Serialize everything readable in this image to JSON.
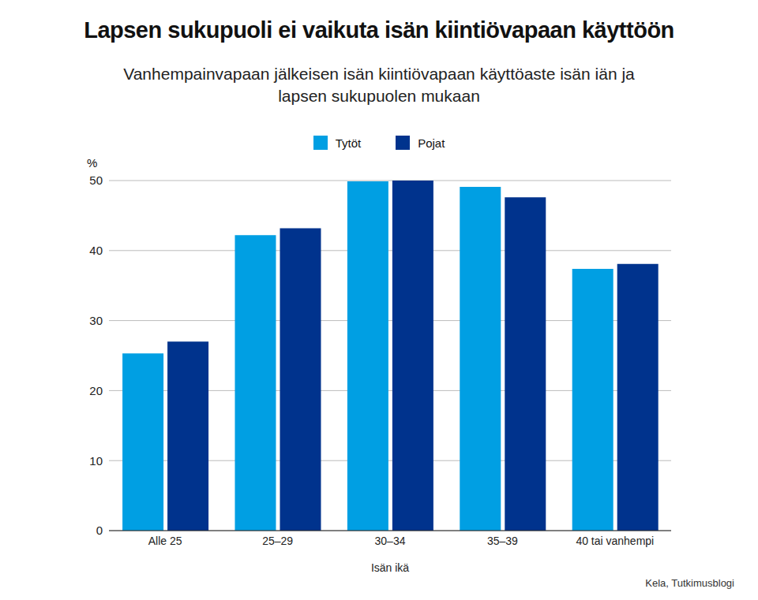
{
  "chart_data": {
    "type": "bar",
    "title": "Lapsen sukupuoli ei vaikuta isän kiintiövapaan käyttöön",
    "subtitle": "Vanhempainvapaan jälkeisen isän kiintiövapaan käyttöaste isän iän ja lapsen sukupuolen mukaan",
    "xlabel": "Isän ikä",
    "ylabel": "%",
    "source": "Kela, Tutkimusblogi",
    "categories": [
      "Alle 25",
      "25–29",
      "30–34",
      "35–39",
      "40 tai vanhempi"
    ],
    "series": [
      {
        "name": "Tytöt",
        "color": "#009fe3",
        "values": [
          25.3,
          42.2,
          49.9,
          49.1,
          37.4
        ]
      },
      {
        "name": "Pojat",
        "color": "#00338d",
        "values": [
          27.0,
          43.2,
          50.0,
          47.6,
          38.1
        ]
      }
    ],
    "ylim": [
      0,
      50
    ],
    "yticks": [
      0,
      10,
      20,
      30,
      40,
      50
    ],
    "grid": true,
    "legend": "top"
  }
}
